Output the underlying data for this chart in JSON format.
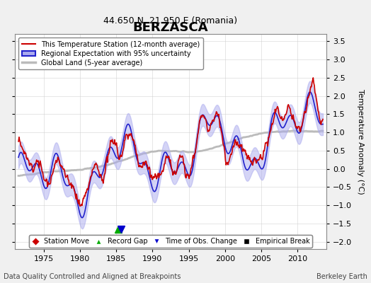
{
  "title": "BERZASCA",
  "subtitle": "44.650 N, 21.950 E (Romania)",
  "ylabel": "Temperature Anomaly (°C)",
  "footer_left": "Data Quality Controlled and Aligned at Breakpoints",
  "footer_right": "Berkeley Earth",
  "xlim": [
    1971,
    2014
  ],
  "ylim": [
    -2.2,
    3.7
  ],
  "yticks": [
    -2,
    -1.5,
    -1,
    -0.5,
    0,
    0.5,
    1,
    1.5,
    2,
    2.5,
    3,
    3.5
  ],
  "xticks": [
    1975,
    1980,
    1985,
    1990,
    1995,
    2000,
    2005,
    2010
  ],
  "background_color": "#f0f0f0",
  "plot_bg_color": "#ffffff",
  "legend_entries": [
    {
      "label": "This Temperature Station (12-month average)",
      "color": "#cc0000",
      "lw": 1.5
    },
    {
      "label": "Regional Expectation with 95% uncertainty",
      "color": "#4444ff",
      "lw": 1.5
    },
    {
      "label": "Global Land (5-year average)",
      "color": "#aaaaaa",
      "lw": 2.5
    }
  ],
  "marker_legend": [
    {
      "label": "Station Move",
      "marker": "D",
      "color": "#cc0000"
    },
    {
      "label": "Record Gap",
      "marker": "^",
      "color": "#00aa00"
    },
    {
      "label": "Time of Obs. Change",
      "marker": "v",
      "color": "#0000cc"
    },
    {
      "label": "Empirical Break",
      "marker": "s",
      "color": "#000000"
    }
  ],
  "station_moves": [],
  "record_gaps": [
    1985.0
  ],
  "obs_changes": [
    1985.5
  ],
  "empirical_breaks": []
}
